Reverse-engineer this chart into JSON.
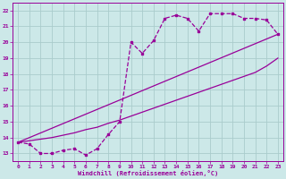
{
  "xlabel": "Windchill (Refroidissement éolien,°C)",
  "bg_color": "#cce8e8",
  "grid_color": "#aacccc",
  "line_color": "#990099",
  "xlim": [
    -0.5,
    23.5
  ],
  "ylim": [
    12.5,
    22.5
  ],
  "xticks": [
    0,
    1,
    2,
    3,
    4,
    5,
    6,
    7,
    8,
    9,
    10,
    11,
    12,
    13,
    14,
    15,
    16,
    17,
    18,
    19,
    20,
    21,
    22,
    23
  ],
  "yticks": [
    13,
    14,
    15,
    16,
    17,
    18,
    19,
    20,
    21,
    22
  ],
  "line1_x": [
    0,
    1,
    2,
    3,
    4,
    5,
    6,
    7,
    8,
    9,
    10,
    11,
    12,
    13,
    14,
    15,
    16,
    17,
    18,
    19,
    20,
    21,
    22,
    23
  ],
  "line1_y": [
    13.7,
    13.6,
    13.0,
    13.0,
    13.2,
    13.3,
    12.9,
    13.3,
    14.2,
    15.0,
    20.0,
    19.3,
    20.1,
    21.5,
    21.7,
    21.5,
    20.7,
    21.8,
    21.8,
    21.8,
    21.5,
    21.5,
    21.4,
    20.5
  ],
  "line2_x": [
    0,
    23
  ],
  "line2_y": [
    13.7,
    20.5
  ],
  "line3_x": [
    0,
    1,
    2,
    3,
    4,
    5,
    6,
    7,
    8,
    9,
    10,
    11,
    12,
    13,
    14,
    15,
    16,
    17,
    18,
    19,
    20,
    21,
    22,
    23
  ],
  "line3_y": [
    13.7,
    13.8,
    13.9,
    14.0,
    14.15,
    14.3,
    14.5,
    14.65,
    14.9,
    15.1,
    15.35,
    15.6,
    15.85,
    16.1,
    16.35,
    16.6,
    16.85,
    17.1,
    17.35,
    17.6,
    17.85,
    18.1,
    18.5,
    19.0
  ]
}
